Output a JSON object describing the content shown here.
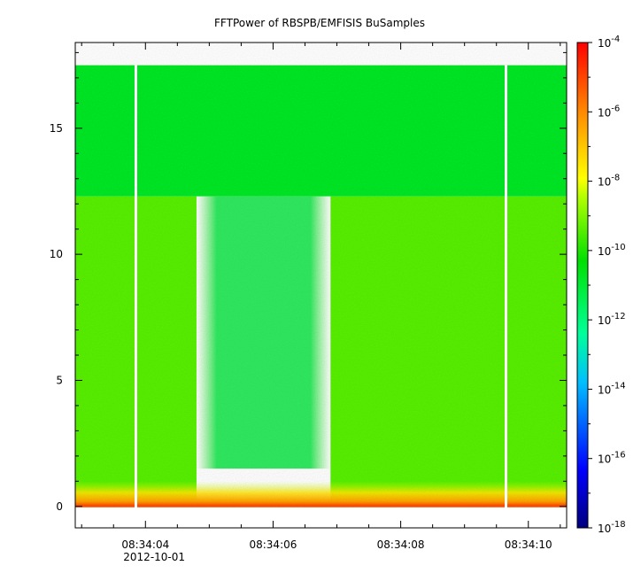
{
  "chart_data": {
    "type": "heatmap",
    "title": "FFTPower of RBSPB/EMFISIS  BuSamples",
    "xlabel": "",
    "ylabel": "",
    "x_axis": {
      "type": "time",
      "range": [
        "2012-10-01 08:34:02.9",
        "2012-10-01 08:34:10.6"
      ],
      "ticks": [
        {
          "value": "08:34:04",
          "label": "08:34:04",
          "sublabel": "2012-10-01"
        },
        {
          "value": "08:34:06",
          "label": "08:34:06",
          "sublabel": ""
        },
        {
          "value": "08:34:08",
          "label": "08:34:08",
          "sublabel": ""
        },
        {
          "value": "08:34:10",
          "label": "08:34:10",
          "sublabel": ""
        }
      ]
    },
    "y_axis": {
      "range": [
        -0.85,
        18.4
      ],
      "ticks": [
        0,
        5,
        10,
        15
      ],
      "tick_labels": [
        "0",
        "5",
        "10",
        "15"
      ]
    },
    "colorbar": {
      "scale": "log",
      "range": [
        1e-18,
        0.0001
      ],
      "colormap": "rainbow",
      "tick_exponents": [
        -18,
        -16,
        -14,
        -12,
        -10,
        -8,
        -6,
        -4
      ],
      "tick_base": "10"
    },
    "data_extent": {
      "y_min": 0,
      "y_max": 17.5
    },
    "gaps": [
      "08:34:03.85",
      "08:34:09.65"
    ],
    "regions": [
      {
        "description": "",
        "time_start": "08:34:02.9",
        "time_end": "08:34:04.8",
        "y_min": 0,
        "y_max": 12.3,
        "log_power": -9.4
      },
      {
        "description": "",
        "time_start": "08:34:04.8",
        "time_end": "08:34:06.9",
        "y_min": 1.5,
        "y_max": 12.3,
        "log_power": -10.6
      },
      {
        "description": "",
        "time_start": "08:34:06.9",
        "time_end": "08:34:10.6",
        "y_min": 0,
        "y_max": 12.3,
        "log_power": -9.4
      },
      {
        "description": "",
        "time_start": "08:34:02.9",
        "time_end": "08:34:10.6",
        "y_min": 12.3,
        "y_max": 17.5,
        "log_power": -10.8
      },
      {
        "description": "",
        "time_start": "08:34:02.9",
        "time_end": "08:34:10.6",
        "y_min": 0,
        "y_max": 1.0,
        "log_power": -8.0
      }
    ],
    "grid": false,
    "legend": "colorbar-right"
  },
  "colors": {
    "gap": "#ffffff",
    "axes": "#000000"
  }
}
